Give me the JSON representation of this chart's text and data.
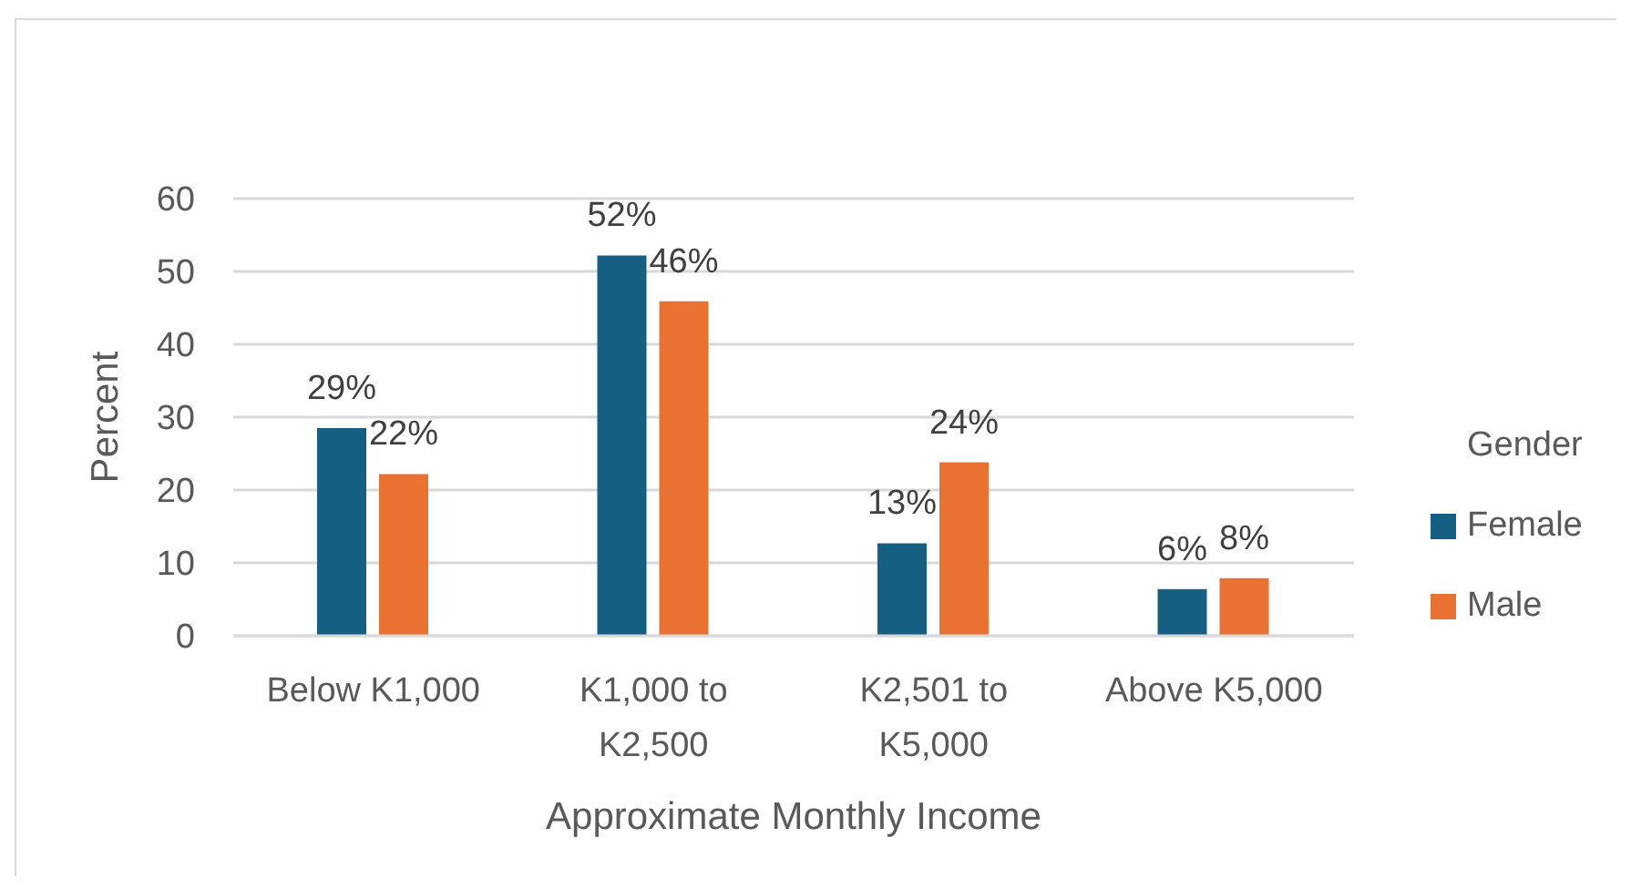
{
  "chart_data": {
    "type": "bar",
    "xlabel": "Approximate Monthly Income",
    "ylabel": "Percent",
    "legend_title": "Gender",
    "categories": [
      "Below K1,000",
      "K1,000 to K2,500",
      "K2,501 to K5,000",
      "Above K5,000"
    ],
    "series": [
      {
        "name": "Female",
        "color": "#156082",
        "values": [
          28.5,
          52.2,
          12.7,
          6.4
        ],
        "value_labels": [
          "29%",
          "52%",
          "13%",
          "6%"
        ]
      },
      {
        "name": "Male",
        "color": "#e97132",
        "values": [
          22.2,
          45.9,
          23.8,
          7.9
        ],
        "value_labels": [
          "22%",
          "46%",
          "24%",
          "8%"
        ]
      }
    ],
    "ylim": [
      0,
      60
    ],
    "yticks": [
      0,
      10,
      20,
      30,
      40,
      50,
      60
    ],
    "grid": "y",
    "legend": "right"
  }
}
